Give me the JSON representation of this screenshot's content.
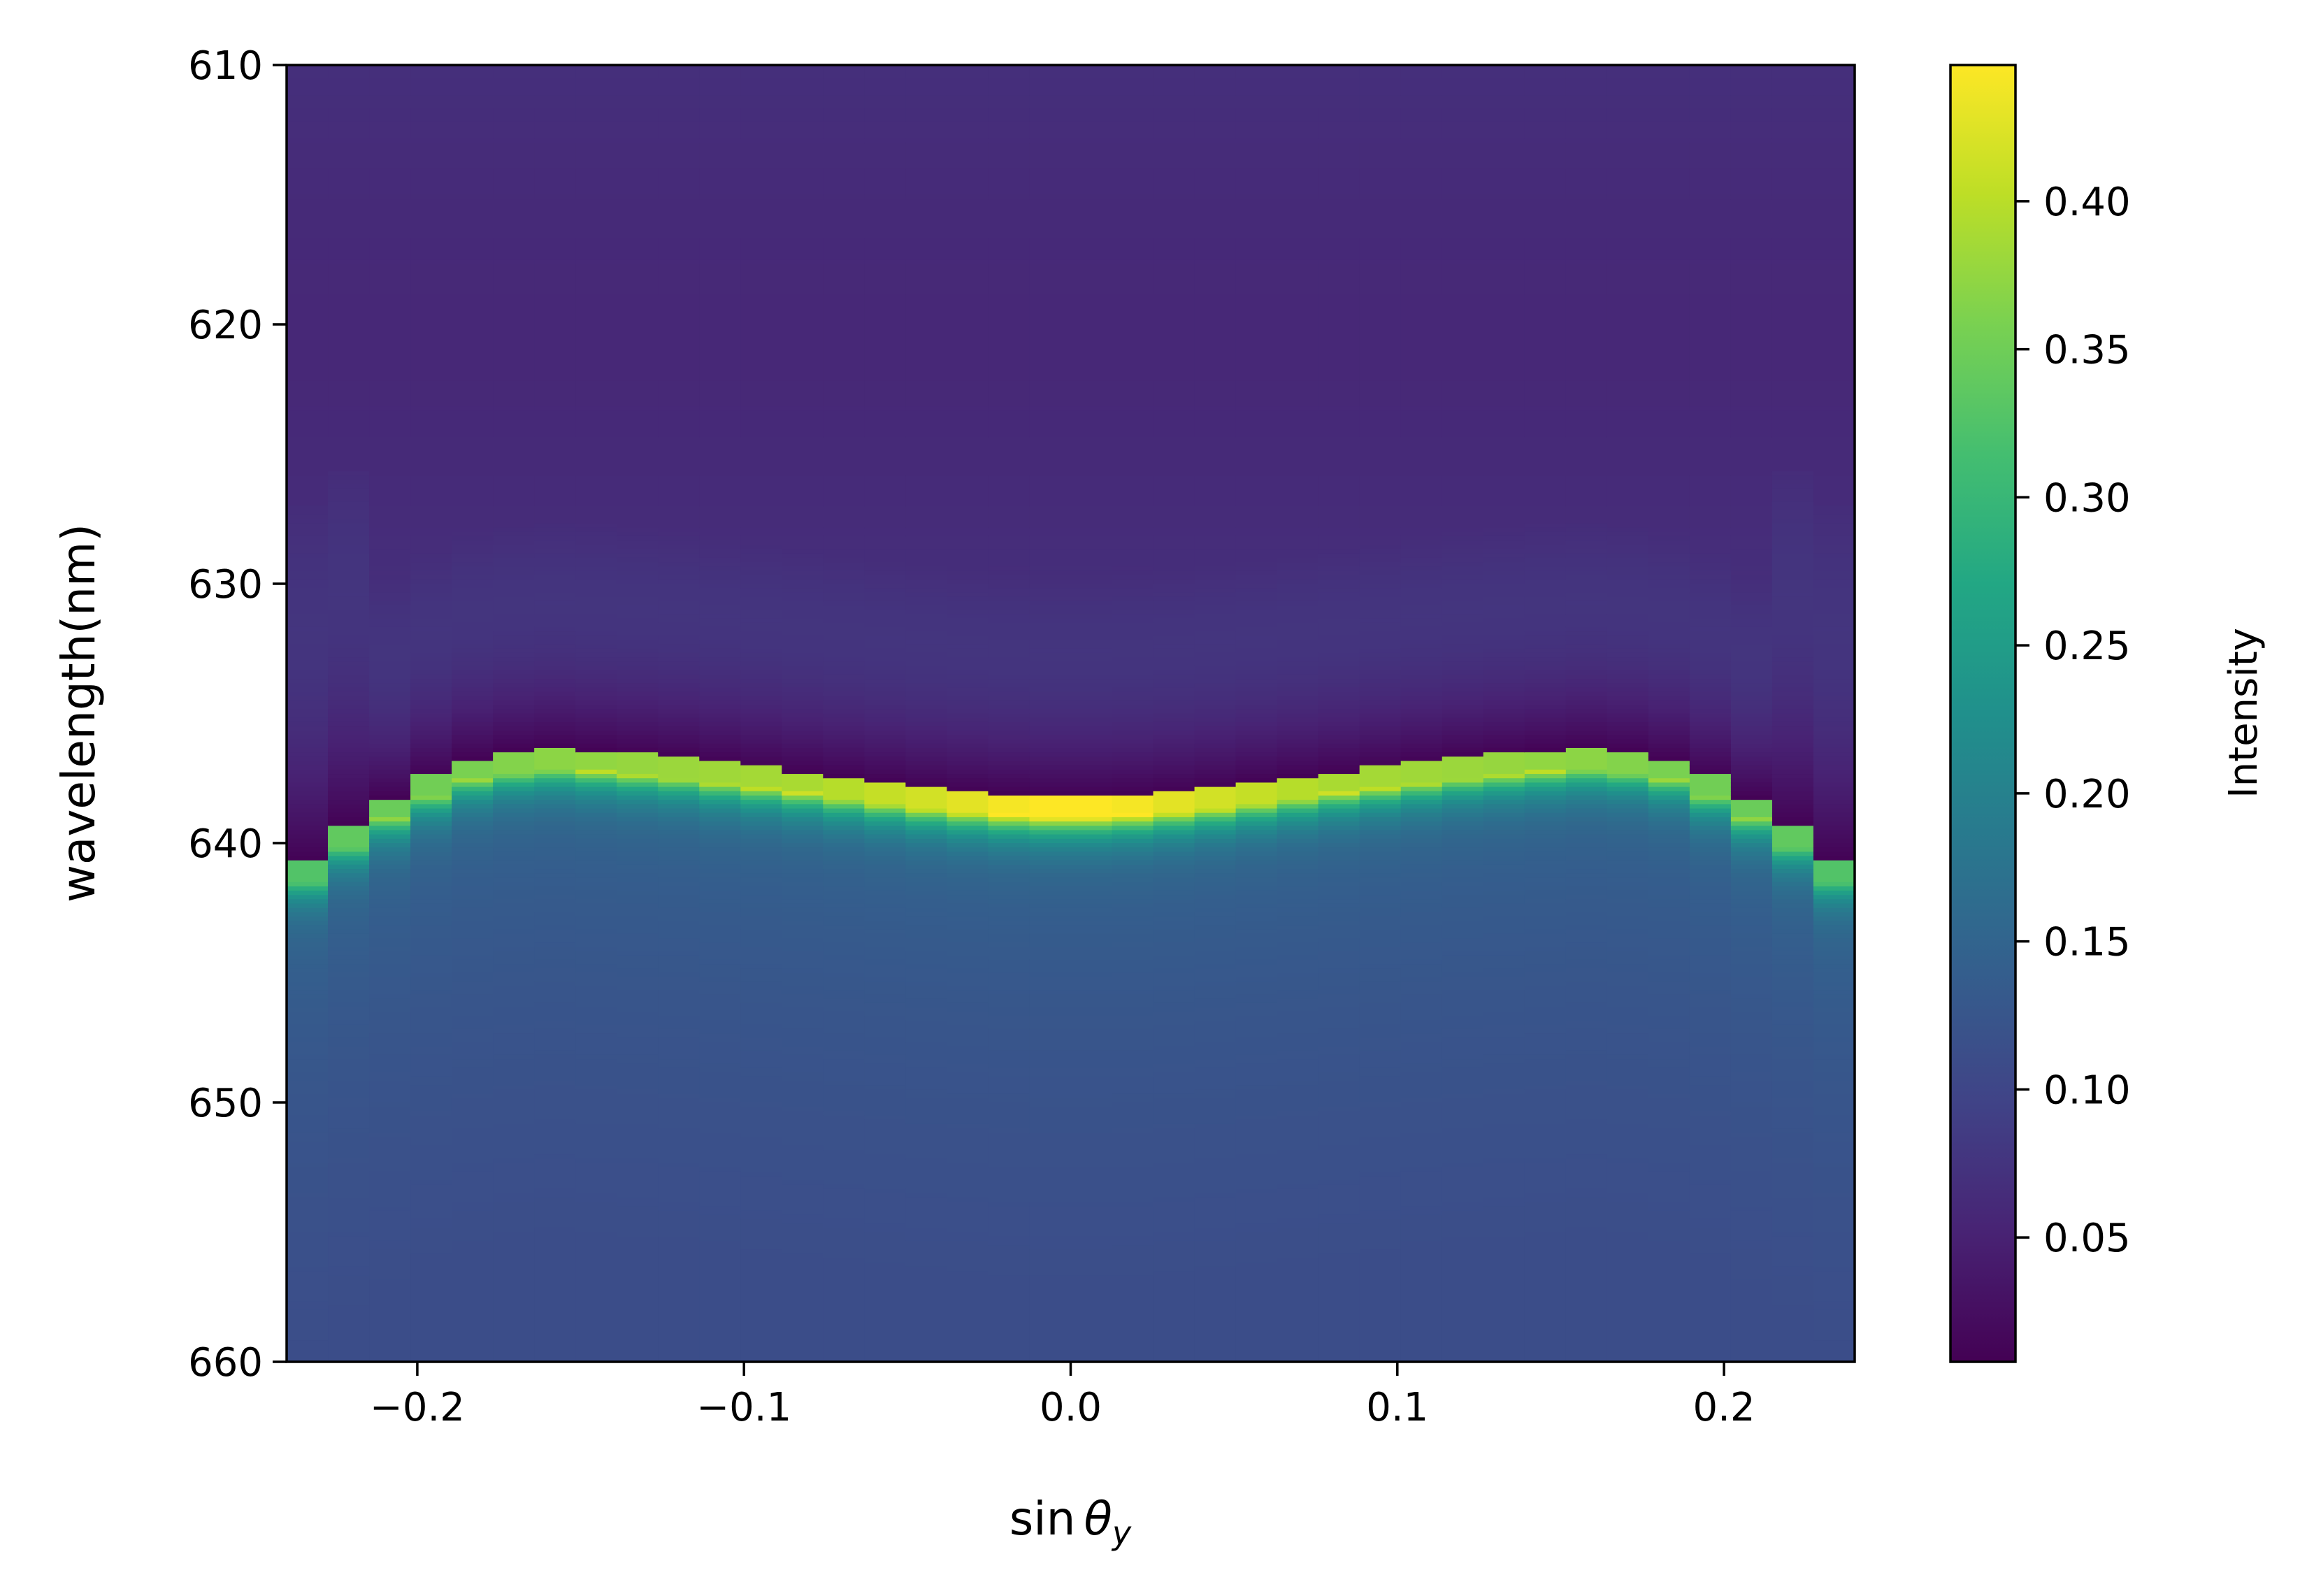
{
  "chart_data": {
    "type": "heatmap",
    "title": "",
    "xlabel_prefix": "sin",
    "xlabel_symbol": "θ",
    "xlabel_subscript": "y",
    "ylabel": "wavelength(nm)",
    "xlim": [
      -0.24,
      0.24
    ],
    "ylim": [
      610,
      660
    ],
    "y_inverted": true,
    "x_ticks": [
      -0.2,
      -0.1,
      0.0,
      0.1,
      0.2
    ],
    "x_tick_labels": [
      "−0.2",
      "−0.1",
      "0.0",
      "0.1",
      "0.2"
    ],
    "y_ticks": [
      610,
      620,
      630,
      640,
      650,
      660
    ],
    "y_tick_labels": [
      "610",
      "620",
      "630",
      "640",
      "650",
      "660"
    ],
    "colormap": "viridis",
    "colorbar": {
      "label": "Intensity",
      "range": [
        0.008,
        0.446
      ],
      "ticks": [
        0.05,
        0.1,
        0.15,
        0.2,
        0.25,
        0.3,
        0.35,
        0.4
      ],
      "tick_labels": [
        "0.05",
        "0.10",
        "0.15",
        "0.20",
        "0.25",
        "0.30",
        "0.35",
        "0.40"
      ]
    },
    "grid": false,
    "resonance_band": {
      "x": [
        -0.24,
        -0.22,
        -0.2,
        -0.18,
        -0.16,
        -0.12,
        -0.08,
        -0.04,
        -0.02,
        0.0,
        0.02,
        0.04,
        0.08,
        0.12,
        0.16,
        0.18,
        0.2,
        0.22,
        0.24
      ],
      "wavelength_nm": [
        641.6,
        639.5,
        637.9,
        636.9,
        636.6,
        637.0,
        637.6,
        638.2,
        638.4,
        638.5,
        638.4,
        638.2,
        637.6,
        637.0,
        636.6,
        636.9,
        637.9,
        639.5,
        641.6
      ],
      "peak_intensity": [
        0.32,
        0.34,
        0.35,
        0.36,
        0.37,
        0.38,
        0.39,
        0.42,
        0.44,
        0.45,
        0.44,
        0.42,
        0.39,
        0.38,
        0.37,
        0.36,
        0.35,
        0.34,
        0.32
      ]
    },
    "background_intensity_above_band": 0.065,
    "background_intensity_below_band": 0.13
  }
}
